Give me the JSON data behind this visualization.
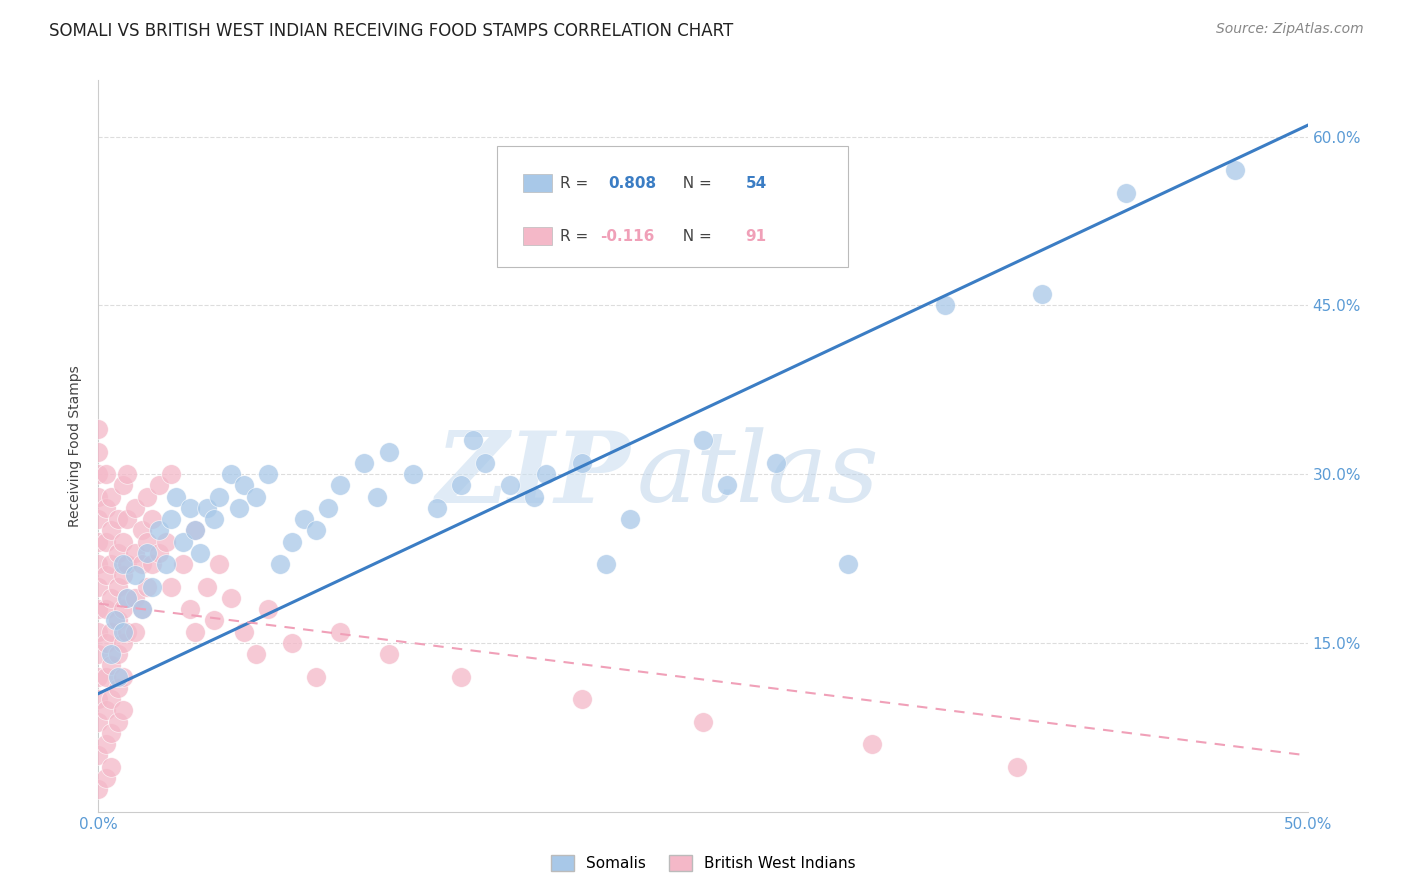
{
  "title": "SOMALI VS BRITISH WEST INDIAN RECEIVING FOOD STAMPS CORRELATION CHART",
  "source": "Source: ZipAtlas.com",
  "ylabel": "Receiving Food Stamps",
  "watermark_zip": "ZIP",
  "watermark_atlas": "atlas",
  "xlim": [
    0.0,
    0.5
  ],
  "ylim": [
    0.0,
    0.65
  ],
  "yticks": [
    0.15,
    0.3,
    0.45,
    0.6
  ],
  "ytick_labels": [
    "15.0%",
    "30.0%",
    "45.0%",
    "60.0%"
  ],
  "xtick_labels": [
    "0.0%",
    "50.0%"
  ],
  "xtick_vals": [
    0.0,
    0.5
  ],
  "somali_color": "#a8c8e8",
  "bwi_color": "#f4b8c8",
  "somali_line_color": "#3b7dc4",
  "bwi_line_color": "#f0a0b8",
  "R_somali": 0.808,
  "N_somali": 54,
  "R_bwi": -0.116,
  "N_bwi": 91,
  "somali_line_intercept": 0.105,
  "somali_line_slope": 1.01,
  "bwi_line_intercept": 0.185,
  "bwi_line_slope": -0.27,
  "somali_points": [
    [
      0.005,
      0.14
    ],
    [
      0.007,
      0.17
    ],
    [
      0.008,
      0.12
    ],
    [
      0.01,
      0.22
    ],
    [
      0.01,
      0.16
    ],
    [
      0.012,
      0.19
    ],
    [
      0.015,
      0.21
    ],
    [
      0.018,
      0.18
    ],
    [
      0.02,
      0.23
    ],
    [
      0.022,
      0.2
    ],
    [
      0.025,
      0.25
    ],
    [
      0.028,
      0.22
    ],
    [
      0.03,
      0.26
    ],
    [
      0.032,
      0.28
    ],
    [
      0.035,
      0.24
    ],
    [
      0.038,
      0.27
    ],
    [
      0.04,
      0.25
    ],
    [
      0.042,
      0.23
    ],
    [
      0.045,
      0.27
    ],
    [
      0.048,
      0.26
    ],
    [
      0.05,
      0.28
    ],
    [
      0.055,
      0.3
    ],
    [
      0.058,
      0.27
    ],
    [
      0.06,
      0.29
    ],
    [
      0.065,
      0.28
    ],
    [
      0.07,
      0.3
    ],
    [
      0.075,
      0.22
    ],
    [
      0.08,
      0.24
    ],
    [
      0.085,
      0.26
    ],
    [
      0.09,
      0.25
    ],
    [
      0.095,
      0.27
    ],
    [
      0.1,
      0.29
    ],
    [
      0.11,
      0.31
    ],
    [
      0.115,
      0.28
    ],
    [
      0.12,
      0.32
    ],
    [
      0.13,
      0.3
    ],
    [
      0.14,
      0.27
    ],
    [
      0.15,
      0.29
    ],
    [
      0.155,
      0.33
    ],
    [
      0.16,
      0.31
    ],
    [
      0.17,
      0.29
    ],
    [
      0.18,
      0.28
    ],
    [
      0.185,
      0.3
    ],
    [
      0.2,
      0.31
    ],
    [
      0.21,
      0.22
    ],
    [
      0.22,
      0.26
    ],
    [
      0.25,
      0.33
    ],
    [
      0.26,
      0.29
    ],
    [
      0.28,
      0.31
    ],
    [
      0.31,
      0.22
    ],
    [
      0.35,
      0.45
    ],
    [
      0.39,
      0.46
    ],
    [
      0.425,
      0.55
    ],
    [
      0.47,
      0.57
    ]
  ],
  "bwi_points": [
    [
      0.0,
      0.34
    ],
    [
      0.0,
      0.32
    ],
    [
      0.0,
      0.3
    ],
    [
      0.0,
      0.28
    ],
    [
      0.0,
      0.26
    ],
    [
      0.0,
      0.24
    ],
    [
      0.0,
      0.22
    ],
    [
      0.0,
      0.2
    ],
    [
      0.0,
      0.18
    ],
    [
      0.0,
      0.16
    ],
    [
      0.0,
      0.14
    ],
    [
      0.0,
      0.12
    ],
    [
      0.0,
      0.1
    ],
    [
      0.0,
      0.08
    ],
    [
      0.0,
      0.05
    ],
    [
      0.0,
      0.02
    ],
    [
      0.003,
      0.3
    ],
    [
      0.003,
      0.27
    ],
    [
      0.003,
      0.24
    ],
    [
      0.003,
      0.21
    ],
    [
      0.003,
      0.18
    ],
    [
      0.003,
      0.15
    ],
    [
      0.003,
      0.12
    ],
    [
      0.003,
      0.09
    ],
    [
      0.003,
      0.06
    ],
    [
      0.003,
      0.03
    ],
    [
      0.005,
      0.28
    ],
    [
      0.005,
      0.25
    ],
    [
      0.005,
      0.22
    ],
    [
      0.005,
      0.19
    ],
    [
      0.005,
      0.16
    ],
    [
      0.005,
      0.13
    ],
    [
      0.005,
      0.1
    ],
    [
      0.005,
      0.07
    ],
    [
      0.005,
      0.04
    ],
    [
      0.008,
      0.26
    ],
    [
      0.008,
      0.23
    ],
    [
      0.008,
      0.2
    ],
    [
      0.008,
      0.17
    ],
    [
      0.008,
      0.14
    ],
    [
      0.008,
      0.11
    ],
    [
      0.008,
      0.08
    ],
    [
      0.01,
      0.29
    ],
    [
      0.01,
      0.24
    ],
    [
      0.01,
      0.21
    ],
    [
      0.01,
      0.18
    ],
    [
      0.01,
      0.15
    ],
    [
      0.01,
      0.12
    ],
    [
      0.01,
      0.09
    ],
    [
      0.012,
      0.3
    ],
    [
      0.012,
      0.26
    ],
    [
      0.012,
      0.22
    ],
    [
      0.012,
      0.19
    ],
    [
      0.012,
      0.16
    ],
    [
      0.015,
      0.27
    ],
    [
      0.015,
      0.23
    ],
    [
      0.015,
      0.19
    ],
    [
      0.015,
      0.16
    ],
    [
      0.018,
      0.25
    ],
    [
      0.018,
      0.22
    ],
    [
      0.018,
      0.18
    ],
    [
      0.02,
      0.28
    ],
    [
      0.02,
      0.24
    ],
    [
      0.02,
      0.2
    ],
    [
      0.022,
      0.26
    ],
    [
      0.022,
      0.22
    ],
    [
      0.025,
      0.29
    ],
    [
      0.025,
      0.23
    ],
    [
      0.028,
      0.24
    ],
    [
      0.03,
      0.3
    ],
    [
      0.03,
      0.2
    ],
    [
      0.035,
      0.22
    ],
    [
      0.038,
      0.18
    ],
    [
      0.04,
      0.25
    ],
    [
      0.04,
      0.16
    ],
    [
      0.045,
      0.2
    ],
    [
      0.048,
      0.17
    ],
    [
      0.05,
      0.22
    ],
    [
      0.055,
      0.19
    ],
    [
      0.06,
      0.16
    ],
    [
      0.065,
      0.14
    ],
    [
      0.07,
      0.18
    ],
    [
      0.08,
      0.15
    ],
    [
      0.09,
      0.12
    ],
    [
      0.1,
      0.16
    ],
    [
      0.12,
      0.14
    ],
    [
      0.15,
      0.12
    ],
    [
      0.2,
      0.1
    ],
    [
      0.25,
      0.08
    ],
    [
      0.32,
      0.06
    ],
    [
      0.38,
      0.04
    ]
  ],
  "background_color": "#ffffff",
  "grid_color": "#dddddd",
  "title_fontsize": 12,
  "source_fontsize": 10,
  "tick_color": "#5b9bd5",
  "axis_label_color": "#444444",
  "legend_R_color": "#444444",
  "legend_box_edge": "#bbbbbb"
}
